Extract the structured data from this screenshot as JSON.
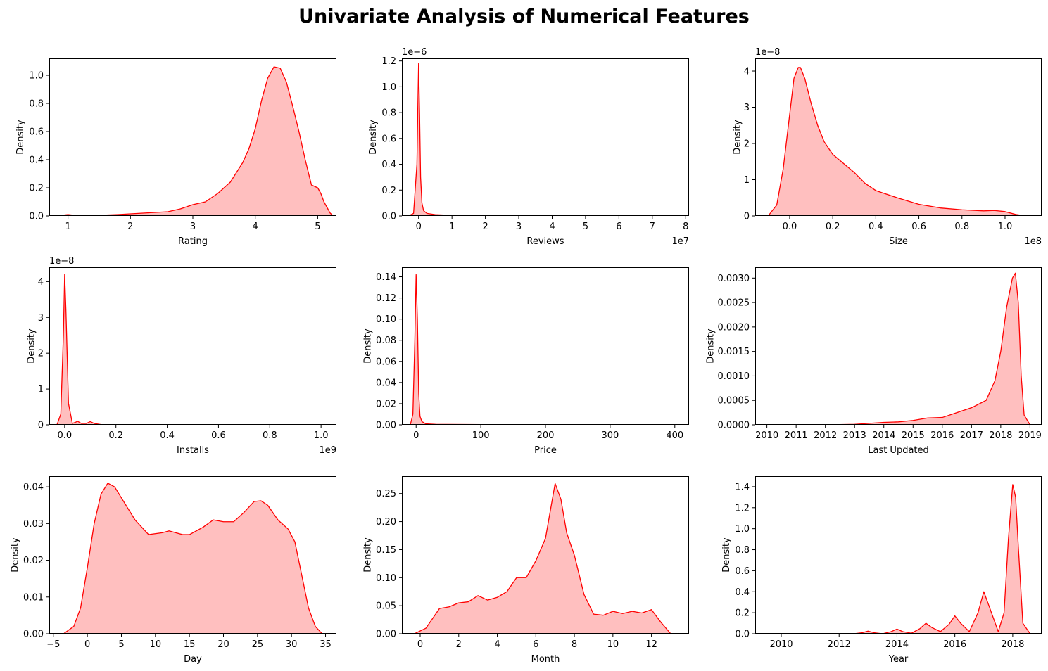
{
  "figure": {
    "title": "Univariate Analysis of Numerical Features",
    "line_color": "#ff0000",
    "fill_color": "#ffbfbf"
  },
  "chart_data": [
    {
      "type": "area",
      "xlabel": "Rating",
      "ylabel": "Density",
      "offset_x": "",
      "offset_y": "",
      "xlim": [
        0.7,
        5.3
      ],
      "ylim": [
        0,
        1.12
      ],
      "xticks": [
        1,
        2,
        3,
        4,
        5
      ],
      "xtick_labels": [
        "1",
        "2",
        "3",
        "4",
        "5"
      ],
      "yticks": [
        0,
        0.2,
        0.4,
        0.6,
        0.8,
        1.0
      ],
      "ytick_labels": [
        "0.0",
        "0.2",
        "0.4",
        "0.6",
        "0.8",
        "1.0"
      ],
      "x": [
        0.75,
        0.9,
        1.0,
        1.1,
        1.3,
        1.5,
        1.8,
        2.0,
        2.2,
        2.4,
        2.6,
        2.8,
        3.0,
        3.1,
        3.2,
        3.4,
        3.6,
        3.8,
        3.9,
        4.0,
        4.1,
        4.2,
        4.3,
        4.4,
        4.5,
        4.6,
        4.7,
        4.8,
        4.9,
        5.0,
        5.05,
        5.1,
        5.2,
        5.25
      ],
      "y": [
        0.0,
        0.005,
        0.01,
        0.005,
        0.003,
        0.005,
        0.01,
        0.015,
        0.02,
        0.025,
        0.03,
        0.05,
        0.08,
        0.09,
        0.1,
        0.16,
        0.24,
        0.38,
        0.48,
        0.62,
        0.82,
        0.98,
        1.06,
        1.05,
        0.95,
        0.78,
        0.6,
        0.4,
        0.22,
        0.2,
        0.16,
        0.1,
        0.02,
        0.0
      ]
    },
    {
      "type": "area",
      "xlabel": "Reviews",
      "ylabel": "Density",
      "offset_x": "1e7",
      "offset_y": "1e−6",
      "xlim": [
        -0.5,
        8.1
      ],
      "ylim": [
        0,
        1.22
      ],
      "xticks": [
        0,
        1,
        2,
        3,
        4,
        5,
        6,
        7,
        8
      ],
      "xtick_labels": [
        "0",
        "1",
        "2",
        "3",
        "4",
        "5",
        "6",
        "7",
        "8"
      ],
      "yticks": [
        0,
        0.2,
        0.4,
        0.6,
        0.8,
        1.0,
        1.2
      ],
      "ytick_labels": [
        "0.0",
        "0.2",
        "0.4",
        "0.6",
        "0.8",
        "1.0",
        "1.2"
      ],
      "x": [
        -0.3,
        -0.15,
        -0.05,
        0.0,
        0.03,
        0.06,
        0.1,
        0.15,
        0.25,
        0.5,
        1.0,
        3.0,
        6.0,
        7.9
      ],
      "y": [
        0.0,
        0.02,
        0.4,
        1.18,
        0.8,
        0.3,
        0.1,
        0.04,
        0.02,
        0.01,
        0.005,
        0.002,
        0.001,
        0.0
      ]
    },
    {
      "type": "area",
      "xlabel": "Size",
      "ylabel": "Density",
      "offset_x": "1e8",
      "offset_y": "1e−8",
      "xlim": [
        -0.16,
        1.17
      ],
      "ylim": [
        0,
        4.35
      ],
      "xticks": [
        0.0,
        0.2,
        0.4,
        0.6,
        0.8,
        1.0
      ],
      "xtick_labels": [
        "0.0",
        "0.2",
        "0.4",
        "0.6",
        "0.8",
        "1.0"
      ],
      "yticks": [
        0,
        1,
        2,
        3,
        4
      ],
      "ytick_labels": [
        "0",
        "1",
        "2",
        "3",
        "4"
      ],
      "x": [
        -0.1,
        -0.06,
        -0.03,
        0.0,
        0.02,
        0.04,
        0.05,
        0.07,
        0.1,
        0.13,
        0.16,
        0.2,
        0.25,
        0.3,
        0.35,
        0.4,
        0.5,
        0.6,
        0.7,
        0.8,
        0.9,
        0.95,
        1.0,
        1.05,
        1.1
      ],
      "y": [
        0.0,
        0.3,
        1.3,
        2.8,
        3.8,
        4.1,
        4.1,
        3.8,
        3.1,
        2.5,
        2.05,
        1.7,
        1.45,
        1.2,
        0.9,
        0.7,
        0.5,
        0.32,
        0.22,
        0.17,
        0.14,
        0.15,
        0.12,
        0.04,
        0.0
      ]
    },
    {
      "type": "area",
      "xlabel": "Installs",
      "ylabel": "Density",
      "offset_x": "1e9",
      "offset_y": "1e−8",
      "xlim": [
        -0.06,
        1.06
      ],
      "ylim": [
        0,
        4.4
      ],
      "xticks": [
        0.0,
        0.2,
        0.4,
        0.6,
        0.8,
        1.0
      ],
      "xtick_labels": [
        "0.0",
        "0.2",
        "0.4",
        "0.6",
        "0.8",
        "1.0"
      ],
      "yticks": [
        0,
        1,
        2,
        3,
        4
      ],
      "ytick_labels": [
        "0",
        "1",
        "2",
        "3",
        "4"
      ],
      "x": [
        -0.03,
        -0.015,
        -0.005,
        0.0,
        0.005,
        0.015,
        0.03,
        0.045,
        0.05,
        0.065,
        0.085,
        0.1,
        0.115,
        0.14,
        0.5,
        1.0
      ],
      "y": [
        0.0,
        0.3,
        2.5,
        4.2,
        3.2,
        0.6,
        0.04,
        0.08,
        0.1,
        0.04,
        0.04,
        0.09,
        0.04,
        0.01,
        0.005,
        0.0
      ]
    },
    {
      "type": "area",
      "xlabel": "Price",
      "ylabel": "Density",
      "offset_x": "",
      "offset_y": "",
      "xlim": [
        -22,
        422
      ],
      "ylim": [
        0,
        0.149
      ],
      "xticks": [
        0,
        100,
        200,
        300,
        400
      ],
      "xtick_labels": [
        "0",
        "100",
        "200",
        "300",
        "400"
      ],
      "yticks": [
        0,
        0.02,
        0.04,
        0.06,
        0.08,
        0.1,
        0.12,
        0.14
      ],
      "ytick_labels": [
        "0.00",
        "0.02",
        "0.04",
        "0.06",
        "0.08",
        "0.10",
        "0.12",
        "0.14"
      ],
      "x": [
        -9,
        -5,
        -2,
        0,
        2,
        4,
        6,
        9,
        15,
        30,
        100,
        400
      ],
      "y": [
        0.0,
        0.01,
        0.08,
        0.142,
        0.1,
        0.03,
        0.008,
        0.003,
        0.001,
        0.0005,
        0.0002,
        0.0
      ]
    },
    {
      "type": "area",
      "xlabel": "Last Updated",
      "ylabel": "Density",
      "offset_x": "",
      "offset_y": "",
      "xlim": [
        2009.6,
        2019.4
      ],
      "ylim": [
        0,
        0.00322
      ],
      "xticks": [
        2010,
        2011,
        2012,
        2013,
        2014,
        2015,
        2016,
        2017,
        2018,
        2019
      ],
      "xtick_labels": [
        "2010",
        "2011",
        "2012",
        "2013",
        "2014",
        "2015",
        "2016",
        "2017",
        "2018",
        "2019"
      ],
      "yticks": [
        0,
        0.0005,
        0.001,
        0.0015,
        0.002,
        0.0025,
        0.003
      ],
      "ytick_labels": [
        "0.0000",
        "0.0005",
        "0.0010",
        "0.0015",
        "0.0020",
        "0.0025",
        "0.0030"
      ],
      "x": [
        2010.0,
        2012.0,
        2013.0,
        2013.5,
        2014.0,
        2014.5,
        2015.0,
        2015.5,
        2016.0,
        2016.5,
        2017.0,
        2017.5,
        2017.8,
        2018.0,
        2018.2,
        2018.4,
        2018.5,
        2018.6,
        2018.7,
        2018.8,
        2019.0
      ],
      "y": [
        0.0,
        0.0,
        1e-05,
        3e-05,
        5e-05,
        6e-05,
        9e-05,
        0.00014,
        0.00015,
        0.00025,
        0.00035,
        0.0005,
        0.0009,
        0.0015,
        0.0024,
        0.003,
        0.0031,
        0.0025,
        0.001,
        0.0002,
        0.0
      ]
    },
    {
      "type": "area",
      "xlabel": "Day",
      "ylabel": "Density",
      "offset_x": "",
      "offset_y": "",
      "xlim": [
        -5.6,
        36.6
      ],
      "ylim": [
        0,
        0.0429
      ],
      "xticks": [
        -5,
        0,
        5,
        10,
        15,
        20,
        25,
        30,
        35
      ],
      "xtick_labels": [
        "−5",
        "0",
        "5",
        "10",
        "15",
        "20",
        "25",
        "30",
        "35"
      ],
      "yticks": [
        0,
        0.01,
        0.02,
        0.03,
        0.04
      ],
      "ytick_labels": [
        "0.00",
        "0.01",
        "0.02",
        "0.03",
        "0.04"
      ],
      "x": [
        -3.5,
        -2.0,
        -1.0,
        0.0,
        1.0,
        2.0,
        3.0,
        4.0,
        5.0,
        7.0,
        9.0,
        11.0,
        12.0,
        14.0,
        15.0,
        17.0,
        18.5,
        20.0,
        21.5,
        23.0,
        24.5,
        25.5,
        26.5,
        28.0,
        29.5,
        30.5,
        31.5,
        32.5,
        33.5,
        34.5
      ],
      "y": [
        0.0,
        0.002,
        0.007,
        0.018,
        0.03,
        0.038,
        0.041,
        0.04,
        0.037,
        0.031,
        0.027,
        0.0275,
        0.028,
        0.027,
        0.027,
        0.029,
        0.031,
        0.0305,
        0.0305,
        0.033,
        0.036,
        0.0362,
        0.035,
        0.031,
        0.0285,
        0.025,
        0.016,
        0.007,
        0.002,
        0.0
      ]
    },
    {
      "type": "area",
      "xlabel": "Month",
      "ylabel": "Density",
      "offset_x": "",
      "offset_y": "",
      "xlim": [
        -0.95,
        13.95
      ],
      "ylim": [
        0,
        0.281
      ],
      "xticks": [
        0,
        2,
        4,
        6,
        8,
        10,
        12
      ],
      "xtick_labels": [
        "0",
        "2",
        "4",
        "6",
        "8",
        "10",
        "12"
      ],
      "yticks": [
        0,
        0.05,
        0.1,
        0.15,
        0.2,
        0.25
      ],
      "ytick_labels": [
        "0.00",
        "0.05",
        "0.10",
        "0.15",
        "0.20",
        "0.25"
      ],
      "x": [
        -0.3,
        0.3,
        0.7,
        1.0,
        1.5,
        2.0,
        2.5,
        3.0,
        3.5,
        4.0,
        4.5,
        5.0,
        5.5,
        6.0,
        6.5,
        7.0,
        7.3,
        7.6,
        8.0,
        8.5,
        9.0,
        9.5,
        10.0,
        10.5,
        11.0,
        11.5,
        12.0,
        12.5,
        13.0
      ],
      "y": [
        0.0,
        0.01,
        0.03,
        0.045,
        0.048,
        0.055,
        0.057,
        0.068,
        0.06,
        0.065,
        0.075,
        0.1,
        0.1,
        0.13,
        0.17,
        0.268,
        0.24,
        0.18,
        0.14,
        0.07,
        0.035,
        0.033,
        0.04,
        0.036,
        0.04,
        0.037,
        0.043,
        0.02,
        0.0
      ]
    },
    {
      "type": "area",
      "xlabel": "Year",
      "ylabel": "Density",
      "offset_x": "",
      "offset_y": "",
      "xlim": [
        2009.1,
        2019.0
      ],
      "ylim": [
        0,
        1.5
      ],
      "xticks": [
        2010,
        2012,
        2014,
        2016,
        2018
      ],
      "xtick_labels": [
        "2010",
        "2012",
        "2014",
        "2016",
        "2018"
      ],
      "yticks": [
        0,
        0.2,
        0.4,
        0.6,
        0.8,
        1.0,
        1.2,
        1.4
      ],
      "ytick_labels": [
        "0.0",
        "0.2",
        "0.4",
        "0.6",
        "0.8",
        "1.0",
        "1.2",
        "1.4"
      ],
      "x": [
        2009.5,
        2011.5,
        2012.0,
        2012.5,
        2012.8,
        2013.0,
        2013.2,
        2013.5,
        2013.8,
        2014.0,
        2014.2,
        2014.5,
        2014.8,
        2015.0,
        2015.2,
        2015.5,
        2015.8,
        2016.0,
        2016.2,
        2016.5,
        2016.8,
        2017.0,
        2017.2,
        2017.5,
        2017.7,
        2017.85,
        2018.0,
        2018.1,
        2018.2,
        2018.35,
        2018.6
      ],
      "y": [
        0.0,
        0.0,
        0.002,
        0.0,
        0.01,
        0.025,
        0.01,
        0.0,
        0.02,
        0.045,
        0.02,
        0.005,
        0.05,
        0.1,
        0.06,
        0.02,
        0.09,
        0.17,
        0.1,
        0.02,
        0.2,
        0.4,
        0.25,
        0.02,
        0.2,
        0.9,
        1.42,
        1.3,
        0.8,
        0.1,
        0.0
      ]
    }
  ]
}
